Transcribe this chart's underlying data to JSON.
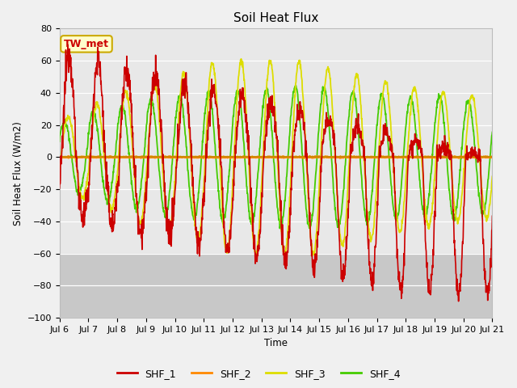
{
  "title": "Soil Heat Flux",
  "ylabel": "Soil Heat Flux (W/m2)",
  "xlabel": "Time",
  "ylim": [
    -100,
    80
  ],
  "fig_bg": "#f0f0f0",
  "plot_bg_upper": "#e8e8e8",
  "plot_bg_lower": "#d0d0d0",
  "h0_color": "#cc8800",
  "annotation_label": "TW_met",
  "annotation_box_color": "#ffffcc",
  "annotation_box_edge": "#ccaa00",
  "annotation_text_color": "#cc0000",
  "series_colors": {
    "SHF_1": "#cc0000",
    "SHF_2": "#ff8800",
    "SHF_3": "#dddd00",
    "SHF_4": "#44cc00"
  },
  "xtick_labels": [
    "Jul 6",
    "Jul 7",
    "Jul 8",
    "Jul 9",
    "Jul 10",
    "Jul 11",
    "Jul 12",
    "Jul 13",
    "Jul 14",
    "Jul 15",
    "Jul 16",
    "Jul 17",
    "Jul 18",
    "Jul 19",
    "Jul 20",
    "Jul 21"
  ],
  "n_days": 15
}
